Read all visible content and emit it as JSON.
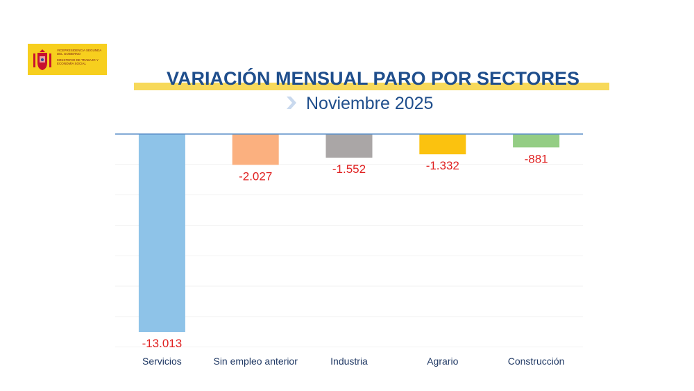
{
  "logo": {
    "line1": "VICEPRESIDENCIA SEGUNDA DEL GOBIERNO",
    "line2": "MINISTERIO DE TRABAJO Y ECONOMÍA SOCIAL"
  },
  "header": {
    "title": "VARIACIÓN MENSUAL PARO POR SECTORES",
    "subtitle": "Noviembre 2025"
  },
  "colors": {
    "title": "#1f4e8c",
    "band": "#f7d95a",
    "labels": "#e02020",
    "axis": "#5b8fc9"
  },
  "chart_data": {
    "type": "bar",
    "categories": [
      "Servicios",
      "Sin empleo anterior",
      "Industria",
      "Agrario",
      "Construcción"
    ],
    "values": [
      -13013,
      -2027,
      -1552,
      -1332,
      -881
    ],
    "data_labels": [
      "-13.013",
      "-2.027",
      "-1.552",
      "-1.332",
      "-881"
    ],
    "colors": [
      "#8ec3e8",
      "#fbb07f",
      "#aaa6a6",
      "#fbc20f",
      "#94cd84"
    ],
    "ylim": [
      -14000,
      0
    ],
    "grid": true,
    "title": "",
    "xlabel": "",
    "ylabel": ""
  }
}
